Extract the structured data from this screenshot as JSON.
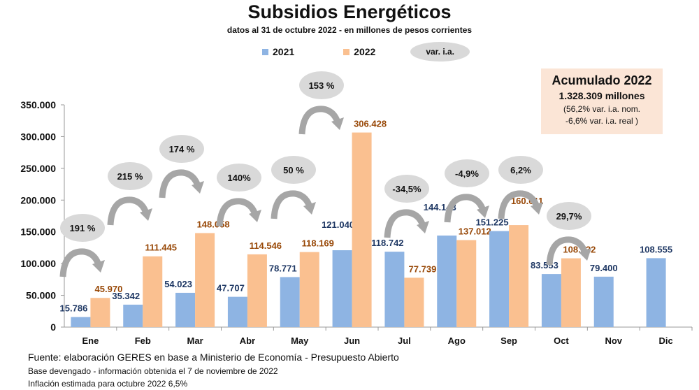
{
  "chart_data": {
    "type": "bar",
    "title": "Subsidios Energéticos",
    "subtitle": "datos al 31 de octubre 2022 - en millones de pesos corrientes",
    "categories": [
      "Ene",
      "Feb",
      "Mar",
      "Abr",
      "May",
      "Jun",
      "Jul",
      "Ago",
      "Sep",
      "Oct",
      "Nov",
      "Dic"
    ],
    "series": [
      {
        "name": "2021",
        "color": "#8eb4e3",
        "label_color": "#1f3864",
        "values": [
          15786,
          35342,
          54023,
          47707,
          78771,
          121040,
          118742,
          144143,
          151225,
          83553,
          79400,
          108555
        ],
        "labels": [
          "15.786",
          "35.342",
          "54.023",
          "47.707",
          "78.771",
          "121.040",
          "118.742",
          "144.143",
          "151.225",
          "83.553",
          "79.400",
          "108.555"
        ]
      },
      {
        "name": "2022",
        "color": "#fac090",
        "label_color": "#984807",
        "values": [
          45970,
          111445,
          148058,
          114546,
          118169,
          306428,
          77739,
          137012,
          160611,
          108332,
          null,
          null
        ],
        "labels": [
          "45.970",
          "111.445",
          "148.058",
          "114.546",
          "118.169",
          "306.428",
          "77.739",
          "137.012",
          "160.611",
          "108.332",
          "",
          ""
        ]
      }
    ],
    "var_ia_label": "var. i.a.",
    "var_ia": [
      "191 %",
      "215 %",
      "174 %",
      "140%",
      "50 %",
      "153 %",
      "-34,5%",
      "-4,9%",
      "6,2%",
      "29,7%"
    ],
    "yticks": [
      "0",
      "50.000",
      "100.000",
      "150.000",
      "200.000",
      "250.000",
      "300.000",
      "350.000"
    ],
    "ylim": [
      0,
      350000
    ],
    "grid": false,
    "legend": "top-center",
    "accumulated": {
      "title": "Acumulado 2022",
      "total": "1.328.309 millones",
      "line1": "(56,2% var. i.a. nom.",
      "line2": "-6,6% var. i.a. real )"
    }
  },
  "footer": {
    "source": "Fuente: elaboración GERES en base a Ministerio de Economía - Presupuesto Abierto",
    "note1": "Base devengado - información obtenida el 7 de noviembre de 2022",
    "note2": "Inflación estimada para octubre 2022 6,5%"
  }
}
